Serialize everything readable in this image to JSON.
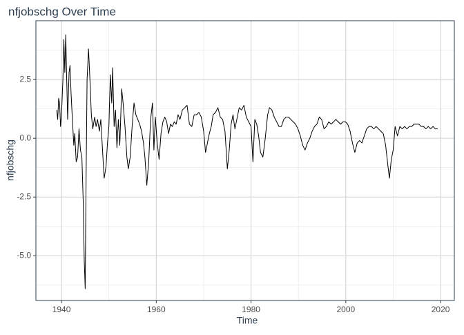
{
  "chart_data": {
    "type": "line",
    "title": "nfjobschg Over Time",
    "x_label": "Time",
    "y_label": "nfjobschg",
    "xlim": [
      1934.6,
      2022.9
    ],
    "ylim": [
      -6.9,
      5.0
    ],
    "xticks": [
      1940,
      1960,
      1980,
      2000,
      2020
    ],
    "yticks": [
      {
        "value": -5,
        "label": "-5.0"
      },
      -2.5,
      {
        "value": 0,
        "label": "0.0"
      },
      2.5
    ],
    "x_minor_ticks": [
      1950,
      1970,
      1990,
      2010
    ],
    "y_minor_ticks": [
      -6.25,
      -3.75,
      -1.25,
      1.25,
      3.75
    ],
    "grid": true,
    "series": [
      {
        "name": "nfjobschg",
        "color": "#000000",
        "x": [
          1939.0,
          1939.2,
          1939.4,
          1939.6,
          1939.8,
          1940.0,
          1940.3,
          1940.5,
          1940.7,
          1940.9,
          1941.1,
          1941.3,
          1941.6,
          1941.8,
          1942.0,
          1942.3,
          1942.6,
          1942.8,
          1943.1,
          1943.4,
          1943.7,
          1944.0,
          1944.3,
          1944.6,
          1944.8,
          1945.0,
          1945.2,
          1945.4,
          1945.7,
          1946.0,
          1946.3,
          1946.6,
          1947.0,
          1947.3,
          1947.6,
          1948.0,
          1948.3,
          1948.6,
          1949.0,
          1949.4,
          1949.7,
          1950.0,
          1950.3,
          1950.6,
          1950.8,
          1951.1,
          1951.4,
          1951.7,
          1952.0,
          1952.3,
          1952.7,
          1953.0,
          1953.4,
          1953.8,
          1954.1,
          1954.5,
          1954.9,
          1955.3,
          1955.7,
          1956.1,
          1956.5,
          1956.9,
          1957.3,
          1957.6,
          1958.0,
          1958.4,
          1958.8,
          1959.2,
          1959.5,
          1959.8,
          1960.2,
          1960.6,
          1961.0,
          1961.4,
          1961.8,
          1962.2,
          1962.6,
          1963.0,
          1963.4,
          1963.8,
          1964.2,
          1964.6,
          1965.0,
          1965.5,
          1966.0,
          1966.5,
          1967.0,
          1967.5,
          1968.0,
          1968.5,
          1969.0,
          1969.5,
          1970.0,
          1970.4,
          1970.8,
          1971.2,
          1971.6,
          1972.0,
          1972.5,
          1973.0,
          1973.5,
          1974.0,
          1974.5,
          1975.0,
          1975.4,
          1975.8,
          1976.2,
          1976.6,
          1977.0,
          1977.5,
          1978.0,
          1978.5,
          1979.0,
          1979.5,
          1980.0,
          1980.4,
          1980.8,
          1981.2,
          1981.6,
          1982.0,
          1982.5,
          1983.0,
          1983.5,
          1983.9,
          1984.4,
          1984.9,
          1985.4,
          1985.9,
          1986.4,
          1986.9,
          1987.4,
          1987.9,
          1988.4,
          1988.9,
          1989.4,
          1989.9,
          1990.4,
          1990.9,
          1991.4,
          1991.9,
          1992.4,
          1992.9,
          1993.4,
          1993.9,
          1994.4,
          1994.9,
          1995.4,
          1995.9,
          1996.4,
          1996.9,
          1997.4,
          1997.9,
          1998.4,
          1998.9,
          1999.4,
          1999.9,
          2000.4,
          2000.9,
          2001.4,
          2001.9,
          2002.4,
          2002.9,
          2003.4,
          2003.9,
          2004.4,
          2004.9,
          2005.4,
          2005.9,
          2006.4,
          2006.9,
          2007.4,
          2007.9,
          2008.4,
          2008.9,
          2009.2,
          2009.6,
          2010.0,
          2010.4,
          2010.9,
          2011.4,
          2011.9,
          2012.4,
          2012.9,
          2013.4,
          2013.9,
          2014.4,
          2014.9,
          2015.4,
          2015.9,
          2016.4,
          2016.9,
          2017.4,
          2017.9,
          2018.4,
          2018.9,
          2019.4
        ],
        "values": [
          1.2,
          0.8,
          1.7,
          1.5,
          0.5,
          1.0,
          2.5,
          4.2,
          2.8,
          4.4,
          2.5,
          0.8,
          2.8,
          3.1,
          2.0,
          0.8,
          -0.3,
          0.2,
          -1.0,
          -0.8,
          0.4,
          -0.5,
          -0.8,
          -2.8,
          -5.2,
          -6.4,
          -1.5,
          2.5,
          3.8,
          2.5,
          1.0,
          0.4,
          0.9,
          0.5,
          0.8,
          0.3,
          0.8,
          -0.3,
          -1.7,
          -1.2,
          -0.2,
          0.5,
          2.7,
          1.5,
          3.0,
          0.5,
          1.2,
          -0.4,
          0.8,
          -0.3,
          2.1,
          1.5,
          0.5,
          -0.8,
          -1.3,
          -0.8,
          0.5,
          1.5,
          1.0,
          0.8,
          0.6,
          0.3,
          -0.2,
          -0.8,
          -2.0,
          -1.0,
          0.8,
          1.5,
          -0.5,
          0.9,
          -0.2,
          -0.9,
          0.2,
          0.7,
          0.9,
          0.7,
          0.2,
          0.6,
          0.5,
          0.7,
          0.6,
          1.0,
          0.8,
          1.2,
          1.3,
          1.4,
          0.6,
          0.5,
          1.0,
          1.0,
          1.1,
          0.9,
          0.3,
          -0.6,
          -0.2,
          0.2,
          0.5,
          1.0,
          1.1,
          1.3,
          0.9,
          0.8,
          0.3,
          -1.3,
          -0.5,
          0.6,
          1.0,
          0.4,
          0.8,
          1.3,
          1.2,
          1.4,
          0.9,
          0.7,
          0.5,
          -1.0,
          0.8,
          0.6,
          0.1,
          -0.6,
          -0.8,
          0.0,
          1.0,
          1.3,
          1.2,
          0.9,
          0.7,
          0.5,
          0.5,
          0.8,
          0.9,
          0.9,
          0.8,
          0.7,
          0.6,
          0.4,
          0.1,
          -0.3,
          -0.5,
          -0.2,
          0.0,
          0.3,
          0.5,
          0.6,
          0.9,
          0.8,
          0.4,
          0.5,
          0.7,
          0.6,
          0.7,
          0.8,
          0.7,
          0.6,
          0.7,
          0.7,
          0.6,
          0.3,
          -0.2,
          -0.6,
          -0.2,
          -0.1,
          -0.2,
          0.1,
          0.4,
          0.5,
          0.5,
          0.4,
          0.5,
          0.4,
          0.3,
          0.2,
          -0.3,
          -1.2,
          -1.7,
          -0.9,
          -0.5,
          0.5,
          0.1,
          0.5,
          0.4,
          0.5,
          0.4,
          0.5,
          0.5,
          0.6,
          0.6,
          0.6,
          0.5,
          0.5,
          0.4,
          0.5,
          0.4,
          0.5,
          0.4,
          0.4
        ]
      }
    ]
  }
}
